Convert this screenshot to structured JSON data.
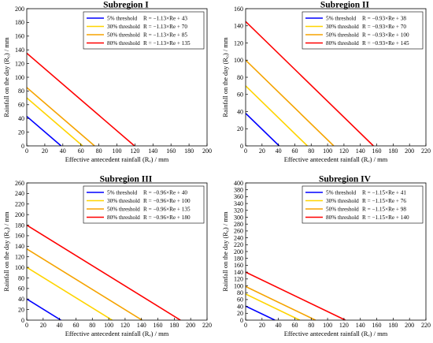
{
  "chart_data": [
    {
      "type": "line",
      "title": "Subregion I",
      "xlabel": "Effective antecedent rainfall (Rₑ) / mm",
      "ylabel": "Rainfall on the day (R₀) / mm",
      "xlim": [
        0,
        200
      ],
      "ylim": [
        0,
        200
      ],
      "xticks": [
        0,
        20,
        40,
        60,
        80,
        100,
        120,
        140,
        160,
        180,
        200
      ],
      "yticks": [
        0,
        20,
        40,
        60,
        80,
        100,
        120,
        140,
        160,
        180,
        200
      ],
      "legend_position": "top-right",
      "series": [
        {
          "name": "5%  threshold",
          "equation": "R = −1.13×Re + 43",
          "color": "#0000ff",
          "x": [
            0,
            38.1
          ],
          "y": [
            43,
            0
          ]
        },
        {
          "name": "30% threshold",
          "equation": "R = −1.13×Re + 70",
          "color": "#ffd400",
          "x": [
            0,
            61.9
          ],
          "y": [
            70,
            0
          ]
        },
        {
          "name": "50% threshold",
          "equation": "R = −1.13×Re + 85",
          "color": "#f5a300",
          "x": [
            0,
            75.2
          ],
          "y": [
            85,
            0
          ]
        },
        {
          "name": "80% threshold",
          "equation": "R = −1.13×Re + 135",
          "color": "#ff0000",
          "x": [
            0,
            119.5
          ],
          "y": [
            135,
            0
          ]
        }
      ]
    },
    {
      "type": "line",
      "title": "Subregion II",
      "xlabel": "Effective antecedent rainfall (Rₑ) / mm",
      "ylabel": "Rainfall on the day (R₀) / mm",
      "xlim": [
        0,
        220
      ],
      "ylim": [
        0,
        160
      ],
      "xticks": [
        0,
        20,
        40,
        60,
        80,
        100,
        120,
        140,
        160,
        180,
        200,
        220
      ],
      "yticks": [
        0,
        20,
        40,
        60,
        80,
        100,
        120,
        140,
        160
      ],
      "legend_position": "top-right",
      "series": [
        {
          "name": "5%  threshold",
          "equation": "R = −0.93×Re + 38",
          "color": "#0000ff",
          "x": [
            0,
            40.9
          ],
          "y": [
            38,
            0
          ]
        },
        {
          "name": "30% threshold",
          "equation": "R = −0.93×Re + 70",
          "color": "#ffd400",
          "x": [
            0,
            75.3
          ],
          "y": [
            70,
            0
          ]
        },
        {
          "name": "50% threshold",
          "equation": "R = −0.93×Re + 100",
          "color": "#f5a300",
          "x": [
            0,
            107.5
          ],
          "y": [
            100,
            0
          ]
        },
        {
          "name": "80% threshold",
          "equation": "R = −0.93×Re + 145",
          "color": "#ff0000",
          "x": [
            0,
            155.9
          ],
          "y": [
            145,
            0
          ]
        }
      ]
    },
    {
      "type": "line",
      "title": "Subregion III",
      "xlabel": "Effective antecedent rainfall (Rₑ) / mm",
      "ylabel": "Rainfall on the day (R₀) / mm",
      "xlim": [
        0,
        220
      ],
      "ylim": [
        0,
        260
      ],
      "xticks": [
        0,
        20,
        40,
        60,
        80,
        100,
        120,
        140,
        160,
        180,
        200,
        220
      ],
      "yticks": [
        0,
        20,
        40,
        60,
        80,
        100,
        120,
        140,
        160,
        180,
        200,
        220,
        240,
        260
      ],
      "legend_position": "top-right",
      "series": [
        {
          "name": "5%  threshold",
          "equation": "R = −0.96×Re + 40",
          "color": "#0000ff",
          "x": [
            0,
            41.7
          ],
          "y": [
            40,
            0
          ]
        },
        {
          "name": "30% threshold",
          "equation": "R = −0.96×Re + 100",
          "color": "#ffd400",
          "x": [
            0,
            104.2
          ],
          "y": [
            100,
            0
          ]
        },
        {
          "name": "50% threshold",
          "equation": "R = −0.96×Re + 135",
          "color": "#f5a300",
          "x": [
            0,
            140.6
          ],
          "y": [
            135,
            0
          ]
        },
        {
          "name": "80% threshold",
          "equation": "R = −0.96×Re + 180",
          "color": "#ff0000",
          "x": [
            0,
            187.5
          ],
          "y": [
            180,
            0
          ]
        }
      ]
    },
    {
      "type": "line",
      "title": "Subregion IV",
      "xlabel": "Effective antecedent rainfall (Rₑ) / mm",
      "ylabel": "Rainfall on the day (R₀) / mm",
      "xlim": [
        0,
        220
      ],
      "ylim": [
        0,
        400
      ],
      "xticks": [
        0,
        20,
        40,
        60,
        80,
        100,
        120,
        140,
        160,
        180,
        200,
        220
      ],
      "yticks": [
        0,
        20,
        40,
        60,
        80,
        100,
        120,
        140,
        160,
        180,
        200,
        220,
        240,
        260,
        280,
        300,
        320,
        340,
        360,
        380,
        400
      ],
      "legend_position": "top-right",
      "series": [
        {
          "name": "5%  threshold",
          "equation": "R = −1.15×Re + 41",
          "color": "#0000ff",
          "x": [
            0,
            35.7
          ],
          "y": [
            41,
            0
          ]
        },
        {
          "name": "30% threshold",
          "equation": "R = −1.15×Re + 76",
          "color": "#ffd400",
          "x": [
            0,
            66.1
          ],
          "y": [
            76,
            0
          ]
        },
        {
          "name": "50% threshold",
          "equation": "R = −1.15×Re + 98",
          "color": "#f5a300",
          "x": [
            0,
            85.2
          ],
          "y": [
            98,
            0
          ]
        },
        {
          "name": "80% threshold",
          "equation": "R = −1.15×Re + 140",
          "color": "#ff0000",
          "x": [
            0,
            121.7
          ],
          "y": [
            140,
            0
          ]
        }
      ]
    }
  ]
}
